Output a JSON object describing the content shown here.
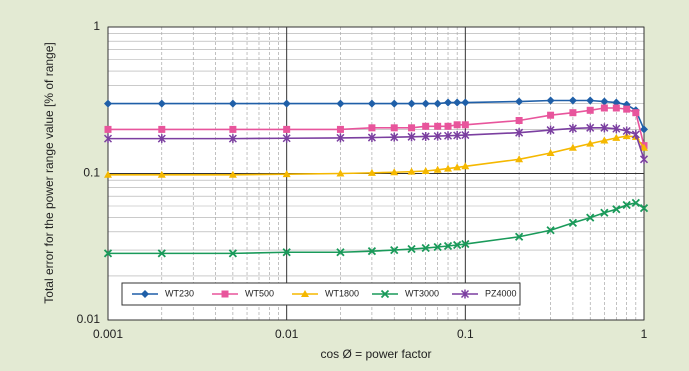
{
  "chart_data": {
    "type": "line",
    "x_label": "cos Ø = power factor",
    "y_label": "Total error for the power range value [% of range]",
    "x": [
      0.001,
      0.002,
      0.005,
      0.01,
      0.02,
      0.03,
      0.04,
      0.05,
      0.06,
      0.07,
      0.08,
      0.09,
      0.1,
      0.2,
      0.3,
      0.4,
      0.5,
      0.6,
      0.7,
      0.8,
      0.9,
      1
    ],
    "series": [
      {
        "name": "WT230",
        "color": "#1f5fa8",
        "marker": "diamond",
        "values": [
          0.3,
          0.3,
          0.3,
          0.3,
          0.3,
          0.3,
          0.3,
          0.3,
          0.3,
          0.3,
          0.305,
          0.305,
          0.305,
          0.31,
          0.315,
          0.315,
          0.315,
          0.31,
          0.305,
          0.295,
          0.27,
          0.2
        ]
      },
      {
        "name": "WT500",
        "color": "#e8559c",
        "marker": "square",
        "values": [
          0.2,
          0.2,
          0.2,
          0.2,
          0.2,
          0.205,
          0.205,
          0.205,
          0.21,
          0.21,
          0.21,
          0.215,
          0.215,
          0.23,
          0.25,
          0.26,
          0.27,
          0.28,
          0.28,
          0.275,
          0.26,
          0.155
        ]
      },
      {
        "name": "WT1800",
        "color": "#f5b800",
        "marker": "triangle",
        "values": [
          0.098,
          0.098,
          0.098,
          0.099,
          0.1,
          0.101,
          0.102,
          0.103,
          0.104,
          0.106,
          0.108,
          0.11,
          0.112,
          0.125,
          0.138,
          0.15,
          0.16,
          0.168,
          0.175,
          0.18,
          0.178,
          0.15
        ]
      },
      {
        "name": "WT3000",
        "color": "#1a9a5a",
        "marker": "x",
        "values": [
          0.0285,
          0.0285,
          0.0285,
          0.029,
          0.029,
          0.0295,
          0.03,
          0.0305,
          0.031,
          0.0315,
          0.032,
          0.0325,
          0.033,
          0.037,
          0.041,
          0.046,
          0.05,
          0.054,
          0.057,
          0.061,
          0.063,
          0.058
        ]
      },
      {
        "name": "PZ4000",
        "color": "#7b3fa0",
        "marker": "star",
        "values": [
          0.173,
          0.173,
          0.173,
          0.174,
          0.175,
          0.176,
          0.177,
          0.178,
          0.179,
          0.18,
          0.181,
          0.182,
          0.183,
          0.19,
          0.198,
          0.203,
          0.205,
          0.205,
          0.202,
          0.195,
          0.185,
          0.125
        ]
      }
    ],
    "xlim": [
      0.001,
      1
    ],
    "ylim": [
      0.01,
      1
    ],
    "xticks": [
      0.001,
      0.01,
      0.1,
      1
    ],
    "yticks": [
      0.01,
      0.1,
      1
    ],
    "xscale": "log",
    "yscale": "log",
    "grid": true,
    "legend": "lower left"
  }
}
